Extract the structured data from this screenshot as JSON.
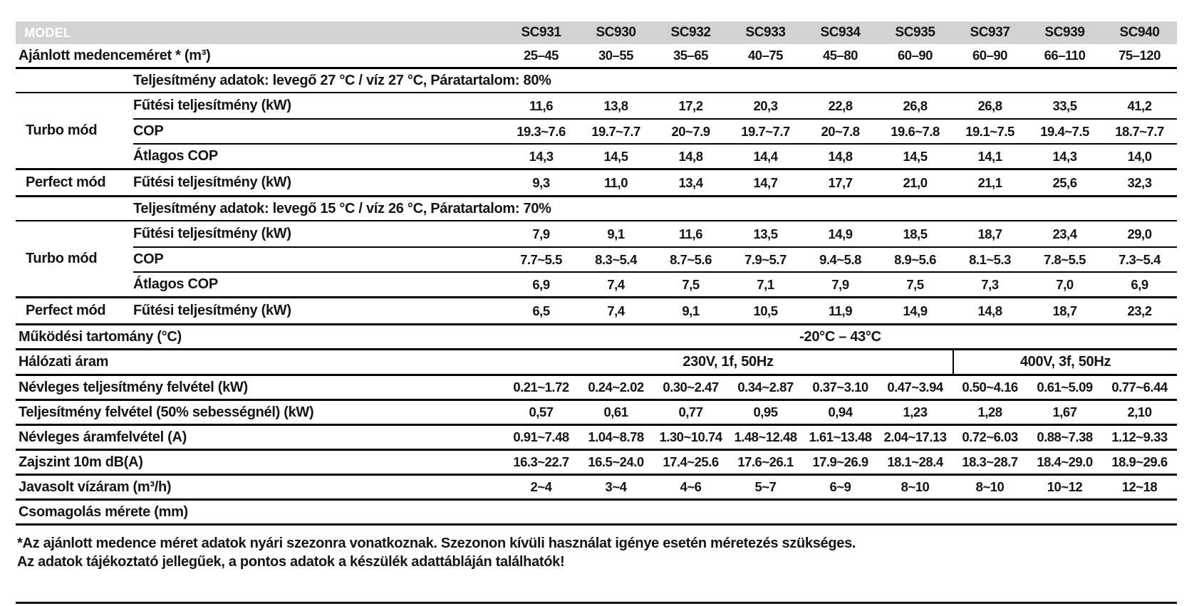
{
  "colors": {
    "header_bg": "#d2d2d2",
    "header_text": "#ffffff",
    "text": "#141414",
    "line": "#000000"
  },
  "table": {
    "models_label": "MODEL",
    "models": [
      "SC931",
      "SC930",
      "SC932",
      "SC933",
      "SC934",
      "SC935",
      "SC937",
      "SC939",
      "SC940"
    ],
    "rows": [
      {
        "type": "full",
        "border": "3",
        "label": "Ajánlott medenceméret * (m³)",
        "values": [
          "25–45",
          "30–55",
          "35–65",
          "40–75",
          "45–80",
          "60–90",
          "60–90",
          "66–110",
          "75–120"
        ]
      },
      {
        "type": "section",
        "label": "Teljesítmény adatok: levegő 27 °C / víz 27 °C, Páratartalom: 80%"
      },
      {
        "type": "group",
        "category": "Turbo mód",
        "rows": [
          {
            "param": "Fűtési teljesítmény (kW)",
            "values": [
              "11,6",
              "13,8",
              "17,2",
              "20,3",
              "22,8",
              "26,8",
              "26,8",
              "33,5",
              "41,2"
            ]
          },
          {
            "param": "COP",
            "values": [
              "19.3~7.6",
              "19.7~7.7",
              "20~7.9",
              "19.7~7.7",
              "20~7.8",
              "19.6~7.8",
              "19.1~7.5",
              "19.4~7.5",
              "18.7~7.7"
            ]
          },
          {
            "param": "Átlagos COP",
            "values": [
              "14,3",
              "14,5",
              "14,8",
              "14,4",
              "14,8",
              "14,5",
              "14,1",
              "14,3",
              "14,0"
            ]
          }
        ]
      },
      {
        "type": "group",
        "category": "Perfect mód",
        "rows": [
          {
            "param": "Fűtési teljesítmény (kW)",
            "values": [
              "9,3",
              "11,0",
              "13,4",
              "14,7",
              "17,7",
              "21,0",
              "21,1",
              "25,6",
              "32,3"
            ]
          }
        ]
      },
      {
        "type": "section",
        "label": "Teljesítmény adatok: levegő 15 °C / víz 26 °C, Páratartalom: 70%"
      },
      {
        "type": "group",
        "category": "Turbo mód",
        "rows": [
          {
            "param": "Fűtési teljesítmény (kW)",
            "values": [
              "7,9",
              "9,1",
              "11,6",
              "13,5",
              "14,9",
              "18,5",
              "18,7",
              "23,4",
              "29,0"
            ]
          },
          {
            "param": "COP",
            "values": [
              "7.7~5.5",
              "8.3~5.4",
              "8.7~5.6",
              "7.9~5.7",
              "9.4~5.8",
              "8.9~5.6",
              "8.1~5.3",
              "7.8~5.5",
              "7.3~5.4"
            ]
          },
          {
            "param": "Átlagos COP",
            "values": [
              "6,9",
              "7,4",
              "7,5",
              "7,1",
              "7,9",
              "7,5",
              "7,3",
              "7,0",
              "6,9"
            ]
          }
        ]
      },
      {
        "type": "group",
        "category": "Perfect mód",
        "rows": [
          {
            "param": "Fűtési teljesítmény (kW)",
            "values": [
              "6,5",
              "7,4",
              "9,1",
              "10,5",
              "11,9",
              "14,9",
              "14,8",
              "18,7",
              "23,2"
            ]
          }
        ]
      },
      {
        "type": "span",
        "label": "Működési tartomány (°C)",
        "value": "-20°C – 43°C"
      },
      {
        "type": "split",
        "label": "Hálózati áram",
        "left": "230V, 1f, 50Hz",
        "right": "400V, 3f, 50Hz"
      },
      {
        "type": "full",
        "border": "3",
        "label": "Névleges teljesítmény felvétel (kW)",
        "values": [
          "0.21~1.72",
          "0.24~2.02",
          "0.30~2.47",
          "0.34~2.87",
          "0.37~3.10",
          "0.47~3.94",
          "0.50~4.16",
          "0.61~5.09",
          "0.77~6.44"
        ]
      },
      {
        "type": "full",
        "border": "3",
        "label": "Teljesítmény felvétel (50% sebességnél) (kW)",
        "values": [
          "0,57",
          "0,61",
          "0,77",
          "0,95",
          "0,94",
          "1,23",
          "1,28",
          "1,67",
          "2,10"
        ]
      },
      {
        "type": "full",
        "border": "3",
        "label": "Névleges áramfelvétel (A)",
        "values": [
          "0.91~7.48",
          "1.04~8.78",
          "1.30~10.74",
          "1.48~12.48",
          "1.61~13.48",
          "2.04~17.13",
          "0.72~6.03",
          "0.88~7.38",
          "1.12~9.33"
        ]
      },
      {
        "type": "full",
        "border": "3",
        "label": "Zajszint 10m dB(A)",
        "values": [
          "16.3~22.7",
          "16.5~24.0",
          "17.4~25.6",
          "17.6~26.1",
          "17.9~26.9",
          "18.1~28.4",
          "18.3~28.7",
          "18.4~29.0",
          "18.9~29.6"
        ]
      },
      {
        "type": "full",
        "border": "3",
        "label": "Javasolt vízáram (m³/h)",
        "values": [
          "2~4",
          "3~4",
          "4~6",
          "5~7",
          "6~9",
          "8~10",
          "8~10",
          "10~12",
          "12~18"
        ]
      },
      {
        "type": "empty",
        "border": "3",
        "label": "Csomagolás mérete (mm)"
      }
    ]
  },
  "footnote": {
    "line1": "*Az ajánlott medence méret adatok nyári szezonra vonatkoznak. Szezonon kívüli használat igénye esetén méretezés szükséges.",
    "line2": "Az adatok tájékoztató jellegűek, a pontos adatok a készülék adattábláján találhatók!"
  }
}
